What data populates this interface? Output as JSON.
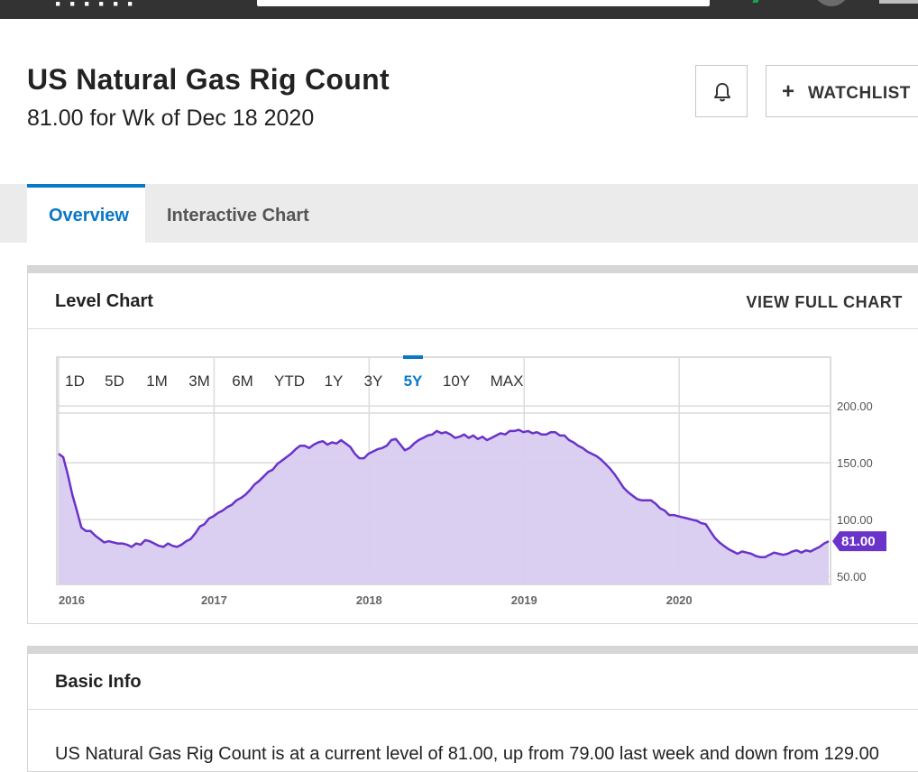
{
  "header": {
    "logo_text": "······"
  },
  "page": {
    "title": "US Natural Gas Rig Count",
    "subtitle": "81.00 for Wk of Dec 18 2020",
    "watchlist_label": "WATCHLIST",
    "alert_icon": "bell-icon",
    "add_icon": "plus-icon"
  },
  "tabs": [
    {
      "label": "Overview",
      "active": true
    },
    {
      "label": "Interactive Chart",
      "active": false
    }
  ],
  "level_chart": {
    "title": "Level Chart",
    "view_full_label": "VIEW FULL CHART",
    "ranges": [
      "1D",
      "5D",
      "1M",
      "3M",
      "6M",
      "YTD",
      "1Y",
      "3Y",
      "5Y",
      "10Y",
      "MAX"
    ],
    "active_range": "5Y"
  },
  "colors": {
    "line": "#6a33c9",
    "fill": "#d9ccf0",
    "accent": "#0a78c8",
    "last_value_tag": "#6a33c9"
  },
  "chart_data": {
    "type": "area",
    "x_start": "2016",
    "x_end": "2020-12-18",
    "x_tick_labels": [
      "2016",
      "2017",
      "2018",
      "2019",
      "2020"
    ],
    "y_tick_labels": [
      "50.00",
      "100.00",
      "150.00",
      "200.00"
    ],
    "ylim": [
      43,
      243
    ],
    "grid": true,
    "last_value": 81.0,
    "last_value_label": "81.00",
    "values": [
      158,
      155,
      140,
      122,
      108,
      93,
      90,
      90,
      86,
      83,
      80,
      81,
      80,
      79,
      79,
      78,
      76,
      79,
      78,
      82,
      81,
      79,
      77,
      76,
      79,
      77,
      76,
      78,
      81,
      83,
      88,
      94,
      96,
      101,
      103,
      106,
      108,
      111,
      113,
      117,
      119,
      122,
      126,
      131,
      134,
      138,
      142,
      144,
      149,
      152,
      155,
      158,
      162,
      165,
      165,
      163,
      166,
      168,
      169,
      166,
      168,
      167,
      170,
      167,
      164,
      158,
      154,
      154,
      158,
      160,
      162,
      163,
      165,
      170,
      171,
      166,
      161,
      163,
      167,
      170,
      172,
      174,
      175,
      178,
      176,
      177,
      175,
      172,
      173,
      175,
      172,
      174,
      171,
      173,
      170,
      172,
      174,
      176,
      175,
      178,
      178,
      179,
      177,
      178,
      176,
      177,
      175,
      175,
      177,
      177,
      174,
      174,
      170,
      168,
      165,
      163,
      160,
      158,
      156,
      153,
      149,
      145,
      140,
      134,
      128,
      124,
      121,
      118,
      117,
      117,
      117,
      114,
      110,
      108,
      104,
      104,
      103,
      102,
      101,
      100,
      99,
      97,
      96,
      90,
      84,
      80,
      77,
      74,
      72,
      70,
      72,
      71,
      70,
      68,
      67,
      67,
      69,
      71,
      70,
      69,
      70,
      72,
      73,
      71,
      73,
      72,
      74,
      76,
      79,
      81
    ]
  },
  "basic_info": {
    "title": "Basic Info",
    "text": "US Natural Gas Rig Count is at a current level of 81.00, up from 79.00 last week and down from 129.00"
  }
}
